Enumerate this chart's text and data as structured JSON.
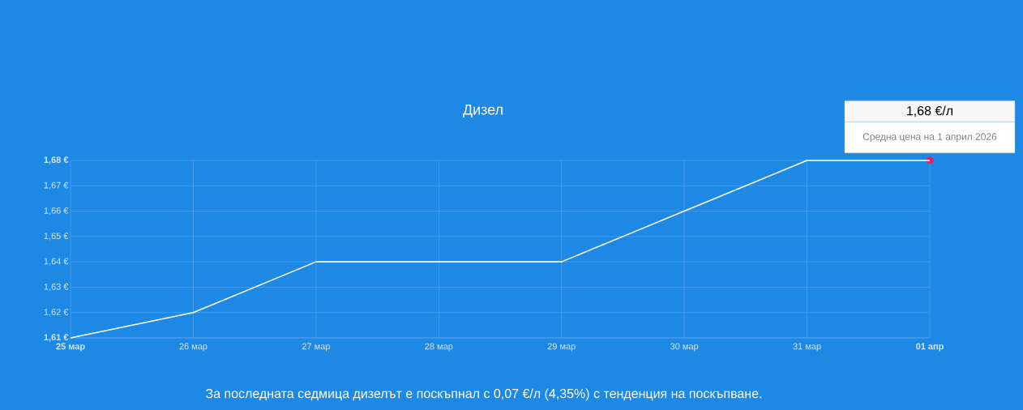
{
  "chart_data": {
    "type": "line",
    "title": "Дизел",
    "categories": [
      "25 мар",
      "26 мар",
      "27 мар",
      "28 мар",
      "29 мар",
      "30 мар",
      "31 мар",
      "01 апр"
    ],
    "series": [
      {
        "color": "#ffffff",
        "values": [
          1.61,
          1.62,
          1.64,
          1.64,
          1.64,
          1.66,
          1.68,
          1.68
        ]
      }
    ],
    "ylim": [
      1.61,
      1.68
    ],
    "yticks": [
      {
        "value": 1.61,
        "label": "1,61 €"
      },
      {
        "value": 1.62,
        "label": "1,62 €"
      },
      {
        "value": 1.63,
        "label": "1,63 €"
      },
      {
        "value": 1.64,
        "label": "1,64 €"
      },
      {
        "value": 1.65,
        "label": "1,65 €"
      },
      {
        "value": 1.66,
        "label": "1,66 €"
      },
      {
        "value": 1.67,
        "label": "1,67 €"
      },
      {
        "value": 1.68,
        "label": "1,68 €"
      }
    ],
    "grid": true,
    "marker": "none",
    "line_style": "solid",
    "annotations": [
      "1,68 €/л",
      {
        "text": "Средна цена на 1 април 2026",
        "x": "01 апр",
        "y": 1.68
      },
      "За последната седмица дизелът е поскъпнал с 0,07 €/л (4,35%) с тенденция на поскъпване."
    ]
  }
}
